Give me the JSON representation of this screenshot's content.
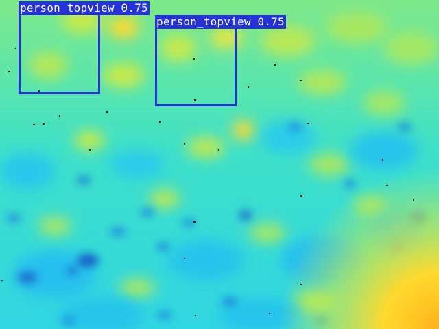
{
  "image": {
    "type": "thermal-heatmap-topview",
    "colormap": "jet-like",
    "colors": {
      "base": "#3fe6c4",
      "cool": "#2fd1e8",
      "cold": "#1e88d8",
      "deep_cold": "#1563c9",
      "warm": "#a7ea5a",
      "hot": "#ffd92e",
      "hotter": "#ffb21a"
    }
  },
  "detections": [
    {
      "class": "person_topview",
      "confidence": "0.75",
      "label": "person_topview 0.75",
      "color": "#2532d6"
    },
    {
      "class": "person_topview",
      "confidence": "0.75",
      "label": "person_topview 0.75",
      "color": "#2532d6"
    }
  ]
}
